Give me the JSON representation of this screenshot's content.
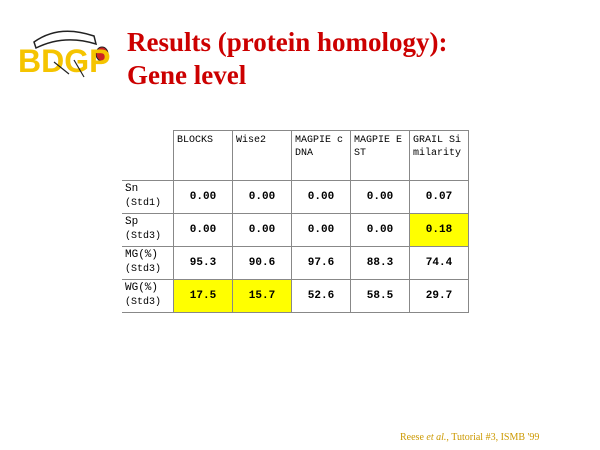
{
  "logo": "BDGP",
  "title": [
    "Results (protein homology):",
    "Gene level"
  ],
  "table": {
    "headers": [
      "BLOCKS",
      "Wise2",
      "MAGPIE cDNA",
      "MAGPIE EST",
      "GRAIL Similarity"
    ],
    "rows": [
      {
        "label": "Sn",
        "sub": "(Std1)",
        "cells": [
          "0.00",
          "0.00",
          "0.00",
          "0.00",
          "0.07"
        ],
        "highlight": [
          false,
          false,
          false,
          false,
          false
        ]
      },
      {
        "label": "Sp",
        "sub": "(Std3)",
        "cells": [
          "0.00",
          "0.00",
          "0.00",
          "0.00",
          "0.18"
        ],
        "highlight": [
          false,
          false,
          false,
          false,
          true
        ]
      },
      {
        "label": "MG(%)",
        "sub": "(Std3)",
        "cells": [
          "95.3",
          "90.6",
          "97.6",
          "88.3",
          "74.4"
        ],
        "highlight": [
          false,
          false,
          false,
          false,
          false
        ]
      },
      {
        "label": "WG(%)",
        "sub": "(Std3)",
        "cells": [
          "17.5",
          "15.7",
          "52.6",
          "58.5",
          "29.7"
        ],
        "highlight": [
          true,
          true,
          false,
          false,
          false
        ]
      }
    ],
    "highlight_color": "#ffff00"
  },
  "footer": [
    "Reese ",
    "et al.",
    ", Tutorial #3, ISMB '99"
  ]
}
